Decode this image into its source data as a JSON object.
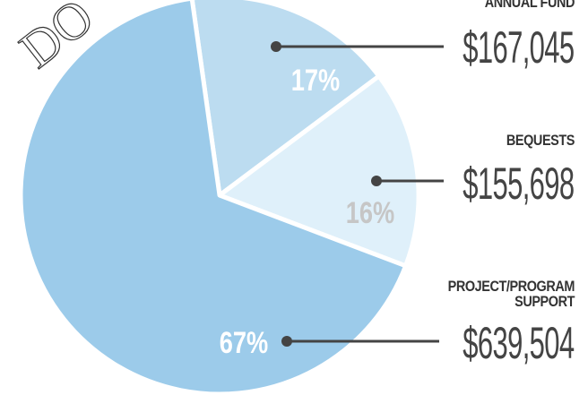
{
  "chart_data": {
    "type": "pie",
    "title": "DO",
    "categories": [
      "ANNUAL FUND",
      "BEQUESTS",
      "PROJECT/PROGRAM SUPPORT"
    ],
    "values": [
      17,
      16,
      67
    ],
    "value_labels": [
      "17%",
      "16%",
      "67%"
    ],
    "amounts": [
      "$167,045",
      "$155,698",
      "$639,504"
    ],
    "colors": [
      "#bcdcf0",
      "#dff0fa",
      "#9ccbea"
    ],
    "label_colors": [
      "#ffffff",
      "#c6c6c6",
      "#ffffff"
    ]
  }
}
